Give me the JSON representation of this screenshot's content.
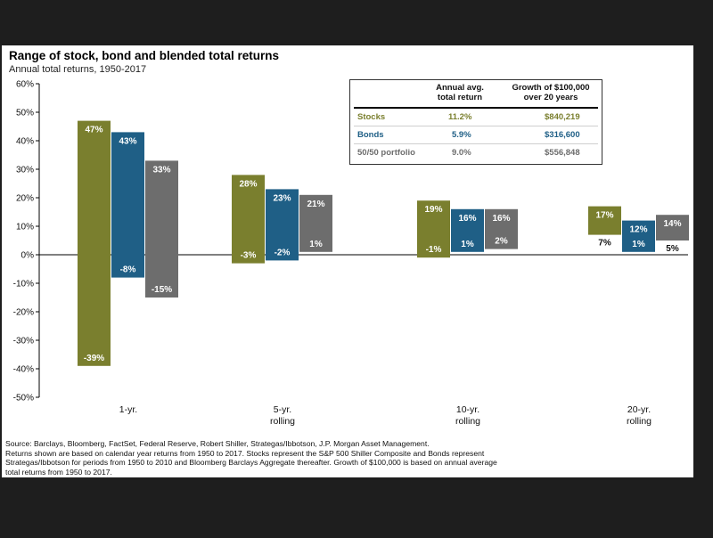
{
  "title": "Range of stock, bond and blended total returns",
  "subtitle": "Annual total returns, 1950-2017",
  "legend_table": {
    "col_headers": [
      "Annual avg.\ntotal return",
      "Growth of $100,000\nover 20 years"
    ],
    "rows": [
      {
        "name": "Stocks",
        "avg": "11.2%",
        "growth": "$840,219",
        "color": "#7a7f2e"
      },
      {
        "name": "Bonds",
        "avg": "5.9%",
        "growth": "$316,600",
        "color": "#1f5f86"
      },
      {
        "name": "50/50 portfolio",
        "avg": "9.0%",
        "growth": "$556,848",
        "color": "#6d6d6d"
      }
    ]
  },
  "source": [
    "Source: Barclays, Bloomberg, FactSet, Federal Reserve, Robert Shiller, Strategas/Ibbotson, J.P. Morgan Asset Management.",
    "Returns shown are based on calendar year returns from 1950 to 2017. Stocks represent the S&P 500 Shiller Composite and Bonds represent",
    "Strategas/Ibbotson for periods from 1950 to 2010 and Bloomberg Barclays Aggregate thereafter. Growth of $100,000 is based on annual average",
    "total returns from 1950 to 2017."
  ],
  "chart_data": {
    "type": "bar",
    "subtype": "floating-range",
    "categories": [
      "1-yr.",
      "5-yr.\nrolling",
      "10-yr.\nrolling",
      "20-yr.\nrolling"
    ],
    "ylim": [
      -50,
      60
    ],
    "yticks": [
      -50,
      -40,
      -30,
      -20,
      -10,
      0,
      10,
      20,
      30,
      40,
      50,
      60
    ],
    "tick_format": "percent",
    "grid": false,
    "legend_placement": "top-right table",
    "series": [
      {
        "name": "Stocks",
        "color": "#7a7f2e",
        "max": [
          47,
          28,
          19,
          17
        ],
        "min": [
          -39,
          -3,
          -1,
          7
        ],
        "max_labels": [
          "47%",
          "28%",
          "19%",
          "17%"
        ],
        "min_labels": [
          "-39%",
          "-3%",
          "-1%",
          "7%"
        ]
      },
      {
        "name": "Bonds",
        "color": "#1f5f86",
        "max": [
          43,
          23,
          16,
          12
        ],
        "min": [
          -8,
          -2,
          1,
          1
        ],
        "max_labels": [
          "43%",
          "23%",
          "16%",
          "12%"
        ],
        "min_labels": [
          "-8%",
          "-2%",
          "1%",
          "1%"
        ]
      },
      {
        "name": "50/50 portfolio",
        "color": "#6d6d6d",
        "max": [
          33,
          21,
          16,
          14
        ],
        "min": [
          -15,
          1,
          2,
          5
        ],
        "max_labels": [
          "33%",
          "21%",
          "16%",
          "14%"
        ],
        "min_labels": [
          "-15%",
          "1%",
          "2%",
          "5%"
        ]
      }
    ]
  }
}
